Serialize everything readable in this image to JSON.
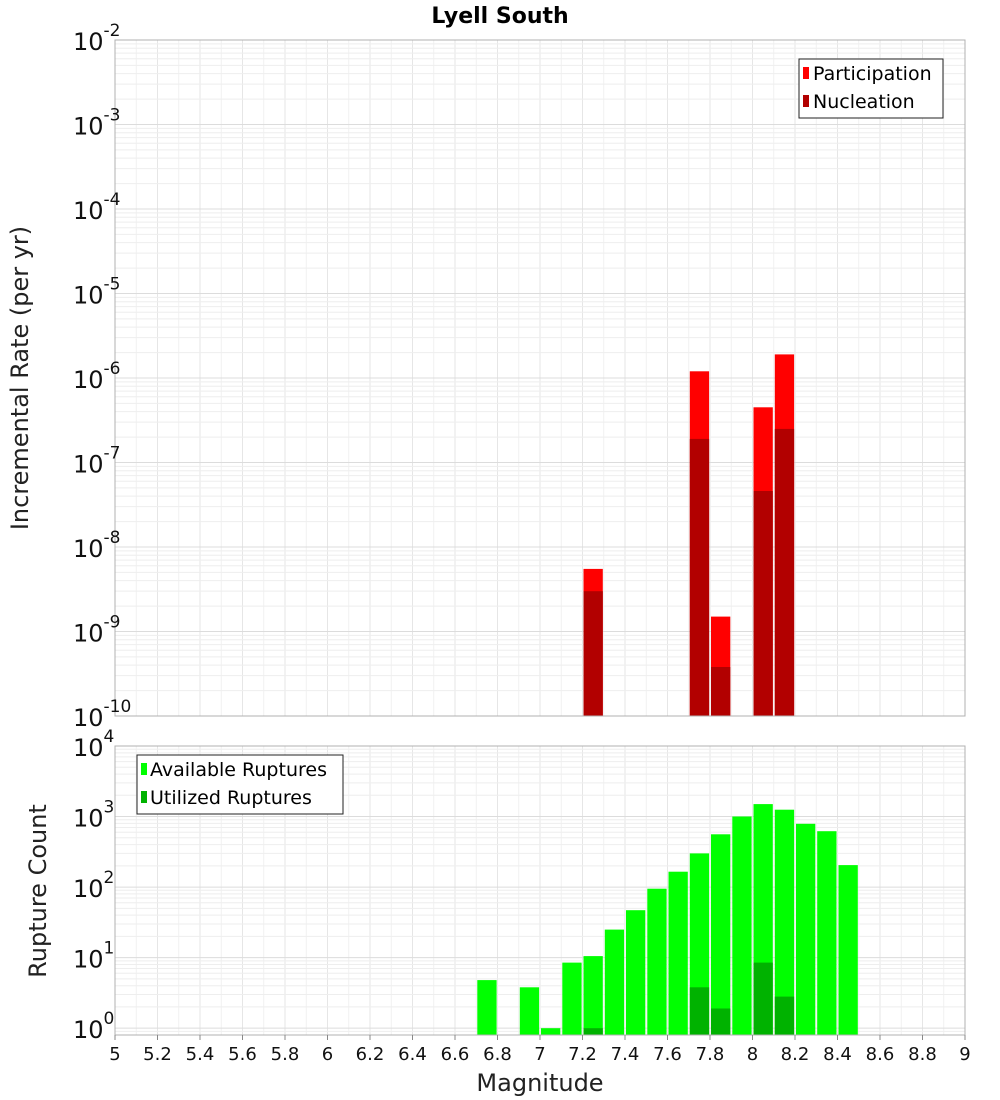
{
  "chart_data": [
    {
      "type": "bar",
      "title": "Lyell South",
      "xlabel": "",
      "ylabel": "Incremental Rate (per yr)",
      "yscale": "log",
      "ylim": [
        1e-10,
        0.01
      ],
      "xlim": [
        5,
        9
      ],
      "grid": true,
      "legend_position": "top-right",
      "series": [
        {
          "name": "Participation",
          "color": "#ff0000",
          "points": [
            {
              "x": 7.25,
              "y": 5.5e-09
            },
            {
              "x": 7.75,
              "y": 1.2e-06
            },
            {
              "x": 7.85,
              "y": 1.5e-09
            },
            {
              "x": 8.05,
              "y": 4.5e-07
            },
            {
              "x": 8.15,
              "y": 1.9e-06
            }
          ]
        },
        {
          "name": "Nucleation",
          "color": "#b20000",
          "points": [
            {
              "x": 7.25,
              "y": 3e-09
            },
            {
              "x": 7.75,
              "y": 1.9e-07
            },
            {
              "x": 7.85,
              "y": 3.8e-10
            },
            {
              "x": 8.05,
              "y": 4.6e-08
            },
            {
              "x": 8.15,
              "y": 2.5e-07
            }
          ]
        }
      ],
      "ytick_labels": [
        {
          "base": "10",
          "exp": "-10",
          "value": 1e-10
        },
        {
          "base": "10",
          "exp": "-9",
          "value": 1e-09
        },
        {
          "base": "10",
          "exp": "-8",
          "value": 1e-08
        },
        {
          "base": "10",
          "exp": "-7",
          "value": 1e-07
        },
        {
          "base": "10",
          "exp": "-6",
          "value": 1e-06
        },
        {
          "base": "10",
          "exp": "-5",
          "value": 1e-05
        },
        {
          "base": "10",
          "exp": "-4",
          "value": 0.0001
        },
        {
          "base": "10",
          "exp": "-3",
          "value": 0.001
        },
        {
          "base": "10",
          "exp": "-2",
          "value": 0.01
        }
      ]
    },
    {
      "type": "bar",
      "title": "",
      "xlabel": "Magnitude",
      "ylabel": "Rupture Count",
      "yscale": "log",
      "ylim": [
        0.8,
        10000
      ],
      "xlim": [
        5,
        9
      ],
      "grid": true,
      "legend_position": "top-left",
      "series": [
        {
          "name": "Available Ruptures",
          "color": "#00ff00",
          "points": [
            {
              "x": 6.75,
              "y": 4.8
            },
            {
              "x": 6.95,
              "y": 3.8
            },
            {
              "x": 7.05,
              "y": 1
            },
            {
              "x": 7.15,
              "y": 8.5
            },
            {
              "x": 7.25,
              "y": 10.5
            },
            {
              "x": 7.35,
              "y": 25
            },
            {
              "x": 7.45,
              "y": 47
            },
            {
              "x": 7.55,
              "y": 95
            },
            {
              "x": 7.65,
              "y": 165
            },
            {
              "x": 7.75,
              "y": 300
            },
            {
              "x": 7.85,
              "y": 560
            },
            {
              "x": 7.95,
              "y": 1000
            },
            {
              "x": 8.05,
              "y": 1500
            },
            {
              "x": 8.15,
              "y": 1250
            },
            {
              "x": 8.25,
              "y": 790
            },
            {
              "x": 8.35,
              "y": 620
            },
            {
              "x": 8.45,
              "y": 205
            }
          ]
        },
        {
          "name": "Utilized Ruptures",
          "color": "#00b200",
          "points": [
            {
              "x": 7.25,
              "y": 1
            },
            {
              "x": 7.75,
              "y": 3.8
            },
            {
              "x": 7.85,
              "y": 1.9
            },
            {
              "x": 8.05,
              "y": 8.5
            },
            {
              "x": 8.15,
              "y": 2.8
            }
          ]
        }
      ],
      "ytick_labels": [
        {
          "base": "10",
          "exp": "0",
          "value": 1
        },
        {
          "base": "10",
          "exp": "1",
          "value": 10
        },
        {
          "base": "10",
          "exp": "2",
          "value": 100
        },
        {
          "base": "10",
          "exp": "3",
          "value": 1000
        },
        {
          "base": "10",
          "exp": "4",
          "value": 10000
        }
      ],
      "xticks": [
        "5",
        "5.2",
        "5.4",
        "5.6",
        "5.8",
        "6",
        "6.2",
        "6.4",
        "6.6",
        "6.8",
        "7",
        "7.2",
        "7.4",
        "7.6",
        "7.8",
        "8",
        "8.2",
        "8.4",
        "8.6",
        "8.8",
        "9"
      ]
    }
  ]
}
